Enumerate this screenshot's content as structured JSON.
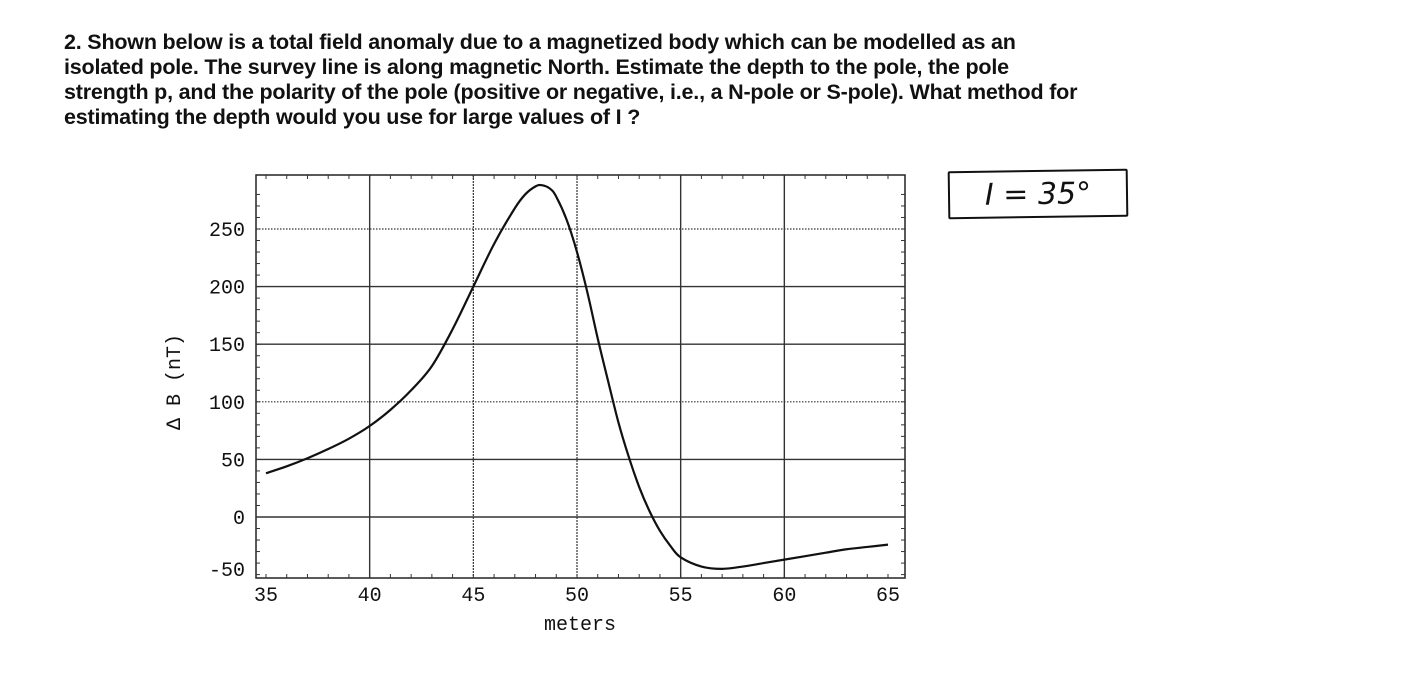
{
  "question": {
    "lines": [
      "2. Shown below is a total field anomaly due to a magnetized body which can be modelled as an",
      "isolated pole.  The survey line is along magnetic North.  Estimate the depth to the pole, the pole",
      "strength p, and the polarity of the pole (positive or negative, i.e., a N-pole or S-pole).  What method for",
      "estimating the depth would you use for large values of I ?"
    ]
  },
  "annotation": {
    "text": "I = 35°"
  },
  "chart_data": {
    "type": "line",
    "title": "",
    "xlabel": "meters",
    "ylabel": "Δ B  (nT)",
    "xlim": [
      35,
      65
    ],
    "ylim": [
      -50,
      290
    ],
    "xticks": [
      35,
      40,
      45,
      50,
      55,
      60,
      65
    ],
    "yticks": [
      -50,
      0,
      50,
      100,
      150,
      200,
      250
    ],
    "grid": true,
    "legend": null,
    "series": [
      {
        "name": "total field anomaly",
        "x": [
          35,
          36,
          37,
          38,
          39,
          40,
          41,
          42,
          43,
          44,
          45,
          46,
          47,
          47.5,
          48,
          48.3,
          48.7,
          49,
          49.5,
          50,
          50.5,
          51,
          51.5,
          52,
          52.5,
          53,
          53.5,
          54,
          54.5,
          55,
          56,
          57,
          58,
          59,
          60,
          61,
          62,
          63,
          64,
          65
        ],
        "y": [
          38,
          44,
          51,
          59,
          68,
          79,
          93,
          110,
          131,
          163,
          200,
          237,
          268,
          280,
          287,
          288,
          285,
          278,
          258,
          230,
          195,
          155,
          118,
          82,
          52,
          26,
          5,
          -12,
          -25,
          -35,
          -43,
          -45,
          -43,
          -40,
          -37,
          -34,
          -31,
          -28,
          -26,
          -24
        ]
      }
    ]
  }
}
